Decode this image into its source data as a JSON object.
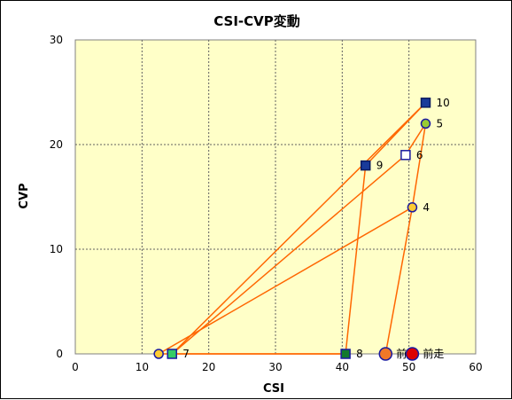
{
  "chart_data": {
    "type": "scatter",
    "title": "CSI-CVP変動",
    "xlabel": "CSI",
    "ylabel": "CVP",
    "xlim": [
      0,
      60
    ],
    "ylim": [
      0,
      30
    ],
    "xticks": [
      0,
      10,
      20,
      30,
      40,
      50,
      60
    ],
    "yticks": [
      0,
      10,
      20,
      30
    ],
    "grid": true,
    "plot_background": "#ffffc8",
    "line_color": "#ff6600",
    "path_order": [
      "前",
      "4",
      "5",
      "6",
      "7",
      "8",
      "9",
      "10",
      "7"
    ],
    "points": [
      {
        "label": "前走",
        "x": 50.5,
        "y": 0,
        "marker": "circle",
        "fill": "#dd0000",
        "stroke": "#1a1aa0"
      },
      {
        "label": "前",
        "x": 46.5,
        "y": 0,
        "marker": "circle",
        "fill": "#f07828",
        "stroke": "#1a1aa0"
      },
      {
        "label": "4",
        "x": 50.5,
        "y": 14,
        "marker": "circle",
        "fill": "#ffcc33",
        "stroke": "#1a1aa0"
      },
      {
        "label": "5",
        "x": 52.5,
        "y": 22,
        "marker": "circle",
        "fill": "#99cc33",
        "stroke": "#1a1aa0"
      },
      {
        "label": "6",
        "x": 49.5,
        "y": 19,
        "marker": "square",
        "fill": "#ffffff",
        "stroke": "#1a1aa0"
      },
      {
        "label": "7",
        "x": 14.5,
        "y": 0,
        "marker": "square",
        "fill": "#33cc66",
        "stroke": "#1a1aa0"
      },
      {
        "label": "8",
        "x": 40.5,
        "y": 0,
        "marker": "square",
        "fill": "#117a2e",
        "stroke": "#1a1aa0"
      },
      {
        "label": "9",
        "x": 43.5,
        "y": 18,
        "marker": "square",
        "fill": "#1a3a9a",
        "stroke": "#0a1a60"
      },
      {
        "label": "10",
        "x": 52.5,
        "y": 24,
        "marker": "square",
        "fill": "#1a3a9a",
        "stroke": "#0a1a60"
      },
      {
        "label": "",
        "x": 12.5,
        "y": 0,
        "marker": "circle",
        "fill": "#ffcc33",
        "stroke": "#1a1aa0"
      }
    ]
  }
}
